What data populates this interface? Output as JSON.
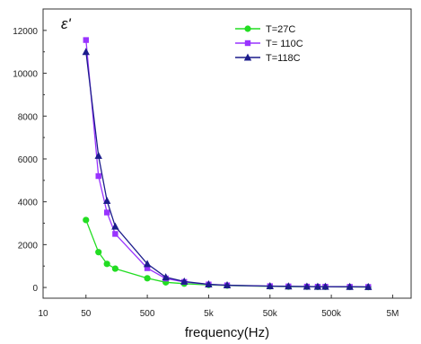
{
  "chart_data": {
    "type": "line",
    "title": "",
    "xlabel": "frequency(Hz)",
    "ylabel": "ε'",
    "x_scale": "log",
    "x_ticks": [
      10,
      50,
      500,
      5000,
      50000,
      500000,
      5000000
    ],
    "x_tick_labels": [
      "10",
      "50",
      "500",
      "5k",
      "50k",
      "500k",
      "5M"
    ],
    "xlim": [
      10,
      10000000
    ],
    "y_ticks": [
      0,
      2000,
      4000,
      6000,
      8000,
      10000,
      12000
    ],
    "y_tick_labels": [
      "0",
      "2000",
      "4000",
      "6000",
      "8000",
      "10000",
      "12000"
    ],
    "ylim": [
      -500,
      13000
    ],
    "grid": false,
    "legend_position": "top-right",
    "series": [
      {
        "name": "T=27C",
        "color": "#22dd22",
        "marker": "circle",
        "points": [
          [
            50,
            3150
          ],
          [
            80,
            1650
          ],
          [
            110,
            1100
          ],
          [
            150,
            880
          ],
          [
            500,
            430
          ],
          [
            1000,
            240
          ],
          [
            2000,
            180
          ],
          [
            5000,
            120
          ],
          [
            10000,
            90
          ],
          [
            50000,
            50
          ],
          [
            100000,
            40
          ],
          [
            200000,
            35
          ],
          [
            300000,
            30
          ],
          [
            400000,
            30
          ],
          [
            1000000,
            25
          ],
          [
            2000000,
            20
          ]
        ]
      },
      {
        "name": "T= 110C",
        "color": "#9933ff",
        "marker": "square",
        "points": [
          [
            50,
            11550
          ],
          [
            80,
            5200
          ],
          [
            110,
            3500
          ],
          [
            150,
            2500
          ],
          [
            500,
            900
          ],
          [
            1000,
            420
          ],
          [
            2000,
            260
          ],
          [
            5000,
            140
          ],
          [
            10000,
            100
          ],
          [
            50000,
            60
          ],
          [
            100000,
            50
          ],
          [
            200000,
            40
          ],
          [
            300000,
            35
          ],
          [
            400000,
            35
          ],
          [
            1000000,
            30
          ],
          [
            2000000,
            25
          ]
        ]
      },
      {
        "name": "T=118C",
        "color": "#1c1c8c",
        "marker": "triangle",
        "points": [
          [
            50,
            11000
          ],
          [
            80,
            6150
          ],
          [
            110,
            4050
          ],
          [
            150,
            2850
          ],
          [
            500,
            1100
          ],
          [
            1000,
            480
          ],
          [
            2000,
            280
          ],
          [
            5000,
            150
          ],
          [
            10000,
            110
          ],
          [
            50000,
            65
          ],
          [
            100000,
            55
          ],
          [
            200000,
            45
          ],
          [
            300000,
            40
          ],
          [
            400000,
            40
          ],
          [
            1000000,
            35
          ],
          [
            2000000,
            30
          ]
        ]
      }
    ]
  }
}
